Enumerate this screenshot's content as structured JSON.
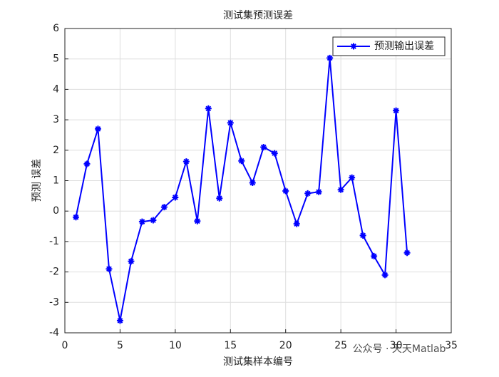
{
  "chart_data": {
    "type": "line",
    "title": "测试集预测误差",
    "xlabel": "测试集样本编号",
    "ylabel": "预测 误差",
    "x": [
      1,
      2,
      3,
      4,
      5,
      6,
      7,
      8,
      9,
      10,
      11,
      12,
      13,
      14,
      15,
      16,
      17,
      18,
      19,
      20,
      21,
      22,
      23,
      24,
      25,
      26,
      27,
      28,
      29,
      30,
      31
    ],
    "series": [
      {
        "name": "预测输出误差",
        "color": "#0000ff",
        "values": [
          -0.2,
          1.55,
          2.7,
          -1.9,
          -3.6,
          -1.65,
          -0.35,
          -0.3,
          0.13,
          0.45,
          1.63,
          -0.33,
          3.37,
          0.42,
          2.9,
          1.65,
          0.93,
          2.1,
          1.9,
          0.66,
          -0.42,
          0.58,
          0.63,
          5.03,
          0.7,
          1.1,
          -0.8,
          -1.48,
          -2.1,
          3.3,
          -1.37
        ]
      }
    ],
    "xlim": [
      0,
      35
    ],
    "xticks": [
      0,
      5,
      10,
      15,
      20,
      25,
      30,
      35
    ],
    "ylim": [
      -4,
      6
    ],
    "yticks": [
      -4,
      -3,
      -2,
      -1,
      0,
      1,
      2,
      3,
      4,
      5,
      6
    ],
    "grid": true,
    "legend": "northeast",
    "watermark": "公众号 · 天天Matlab"
  }
}
